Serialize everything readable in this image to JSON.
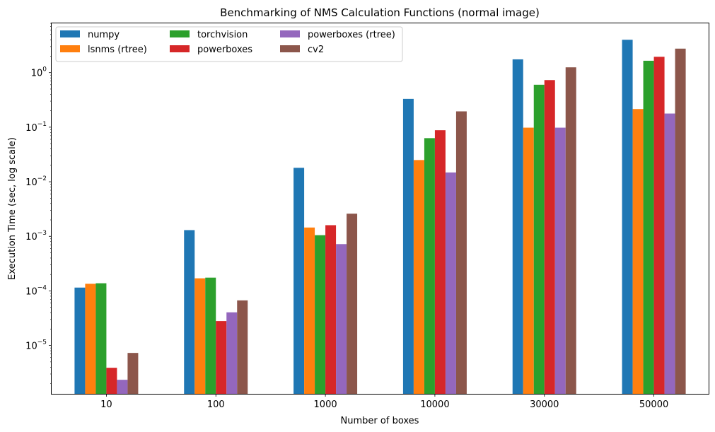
{
  "chart_data": {
    "type": "bar",
    "title": "Benchmarking of NMS Calculation Functions (normal image)",
    "xlabel": "Number of boxes",
    "ylabel": "Execution Time (sec, log scale)",
    "yscale": "log",
    "ylim": [
      1.3e-06,
      8.0
    ],
    "categories": [
      "10",
      "100",
      "1000",
      "10000",
      "30000",
      "50000"
    ],
    "yticks": [
      {
        "value": 1e-05,
        "base": "10",
        "exp": "−5"
      },
      {
        "value": 0.0001,
        "base": "10",
        "exp": "−4"
      },
      {
        "value": 0.001,
        "base": "10",
        "exp": "−3"
      },
      {
        "value": 0.01,
        "base": "10",
        "exp": "−2"
      },
      {
        "value": 0.1,
        "base": "10",
        "exp": "−1"
      },
      {
        "value": 1,
        "base": "10",
        "exp": "0"
      }
    ],
    "legend_position": "top-left",
    "legend_columns": 3,
    "grid": false,
    "series": [
      {
        "name": "numpy",
        "color": "#1f77b4",
        "values": [
          0.000115,
          0.0013,
          0.018,
          0.33,
          1.75,
          4.0
        ]
      },
      {
        "name": "lsnms (rtree)",
        "color": "#ff7f0e",
        "values": [
          0.000135,
          0.00017,
          0.00145,
          0.025,
          0.098,
          0.215
        ]
      },
      {
        "name": "torchvision",
        "color": "#2ca02c",
        "values": [
          0.000138,
          0.000175,
          0.00105,
          0.063,
          0.6,
          1.65
        ]
      },
      {
        "name": "powerboxes",
        "color": "#d62728",
        "values": [
          3.9e-06,
          2.8e-05,
          0.0016,
          0.088,
          0.73,
          1.95
        ]
      },
      {
        "name": "powerboxes (rtree)",
        "color": "#9467bd",
        "values": [
          2.35e-06,
          4.05e-05,
          0.00072,
          0.0148,
          0.098,
          0.178
        ]
      },
      {
        "name": "cv2",
        "color": "#8c564b",
        "values": [
          7.3e-06,
          6.7e-05,
          0.0026,
          0.195,
          1.25,
          2.75
        ]
      }
    ]
  }
}
